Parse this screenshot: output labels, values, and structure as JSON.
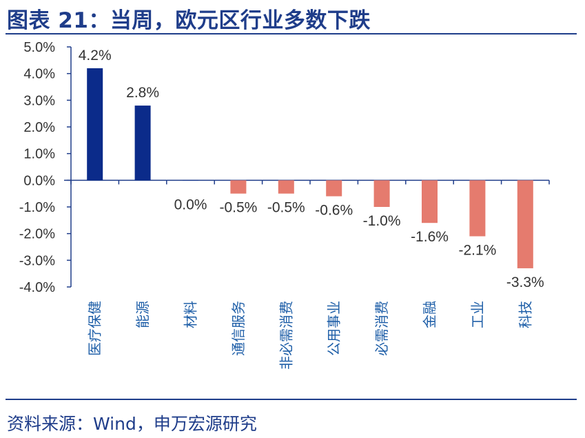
{
  "header": {
    "title": "图表 21：当周，欧元区行业多数下跌"
  },
  "footer": {
    "source": "资料来源：Wind，申万宏源研究"
  },
  "colors": {
    "positive": "#0b2b8a",
    "negative": "#e57b6e",
    "axis": "#1f3d8a",
    "rule": "#1f3d8a"
  },
  "chart_data": {
    "type": "bar",
    "title": "",
    "xlabel": "",
    "ylabel": "",
    "ylim": [
      -4.0,
      5.0
    ],
    "yticks": [
      5.0,
      4.0,
      3.0,
      2.0,
      1.0,
      0.0,
      -1.0,
      -2.0,
      -3.0,
      -4.0
    ],
    "ytick_labels": [
      "5.0%",
      "4.0%",
      "3.0%",
      "2.0%",
      "1.0%",
      "0.0%",
      "-1.0%",
      "-2.0%",
      "-3.0%",
      "-4.0%"
    ],
    "categories": [
      "医疗保健",
      "能源",
      "材料",
      "通信服务",
      "非必需消费",
      "公用事业",
      "必需消费",
      "金融",
      "工业",
      "科技"
    ],
    "values": [
      4.2,
      2.8,
      0.0,
      -0.5,
      -0.5,
      -0.6,
      -1.0,
      -1.6,
      -2.1,
      -3.3
    ],
    "value_labels": [
      "4.2%",
      "2.8%",
      "0.0%",
      "-0.5%",
      "-0.5%",
      "-0.6%",
      "-1.0%",
      "-1.6%",
      "-2.1%",
      "-3.3%"
    ],
    "grid": false,
    "legend": "none"
  }
}
